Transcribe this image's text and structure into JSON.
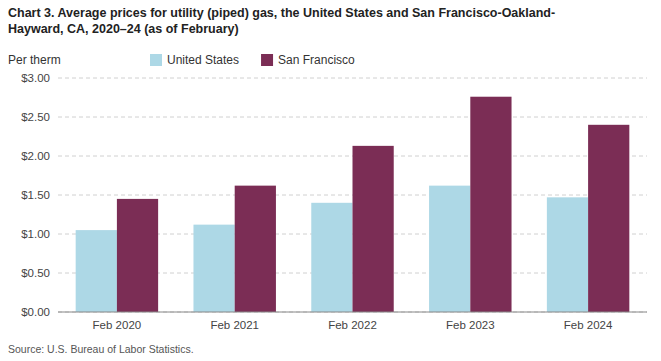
{
  "chart_data": {
    "type": "bar",
    "title": "Chart 3. Average prices for utility (piped) gas, the United States and San Francisco-Oakland-\nHayward, CA, 2020–24 (as of February)",
    "ylabel": "Per therm",
    "source": "Source: U.S. Bureau of Labor Statistics.",
    "categories": [
      "Feb 2020",
      "Feb 2021",
      "Feb 2022",
      "Feb 2023",
      "Feb 2024"
    ],
    "series": [
      {
        "name": "United States",
        "color": "#ADD8E6",
        "values": [
          1.05,
          1.12,
          1.4,
          1.62,
          1.47
        ]
      },
      {
        "name": "San Francisco",
        "color": "#7B2D55",
        "values": [
          1.45,
          1.62,
          2.13,
          2.76,
          2.4
        ]
      }
    ],
    "ylim": [
      0,
      3.0
    ],
    "yticks": [
      {
        "value": 0.0,
        "label": "$0.00"
      },
      {
        "value": 0.5,
        "label": "$0.50"
      },
      {
        "value": 1.0,
        "label": "$1.00"
      },
      {
        "value": 1.5,
        "label": "$1.50"
      },
      {
        "value": 2.0,
        "label": "$2.00"
      },
      {
        "value": 2.5,
        "label": "$2.50"
      },
      {
        "value": 3.0,
        "label": "$3.00"
      }
    ],
    "grid": true,
    "legend": "top"
  }
}
